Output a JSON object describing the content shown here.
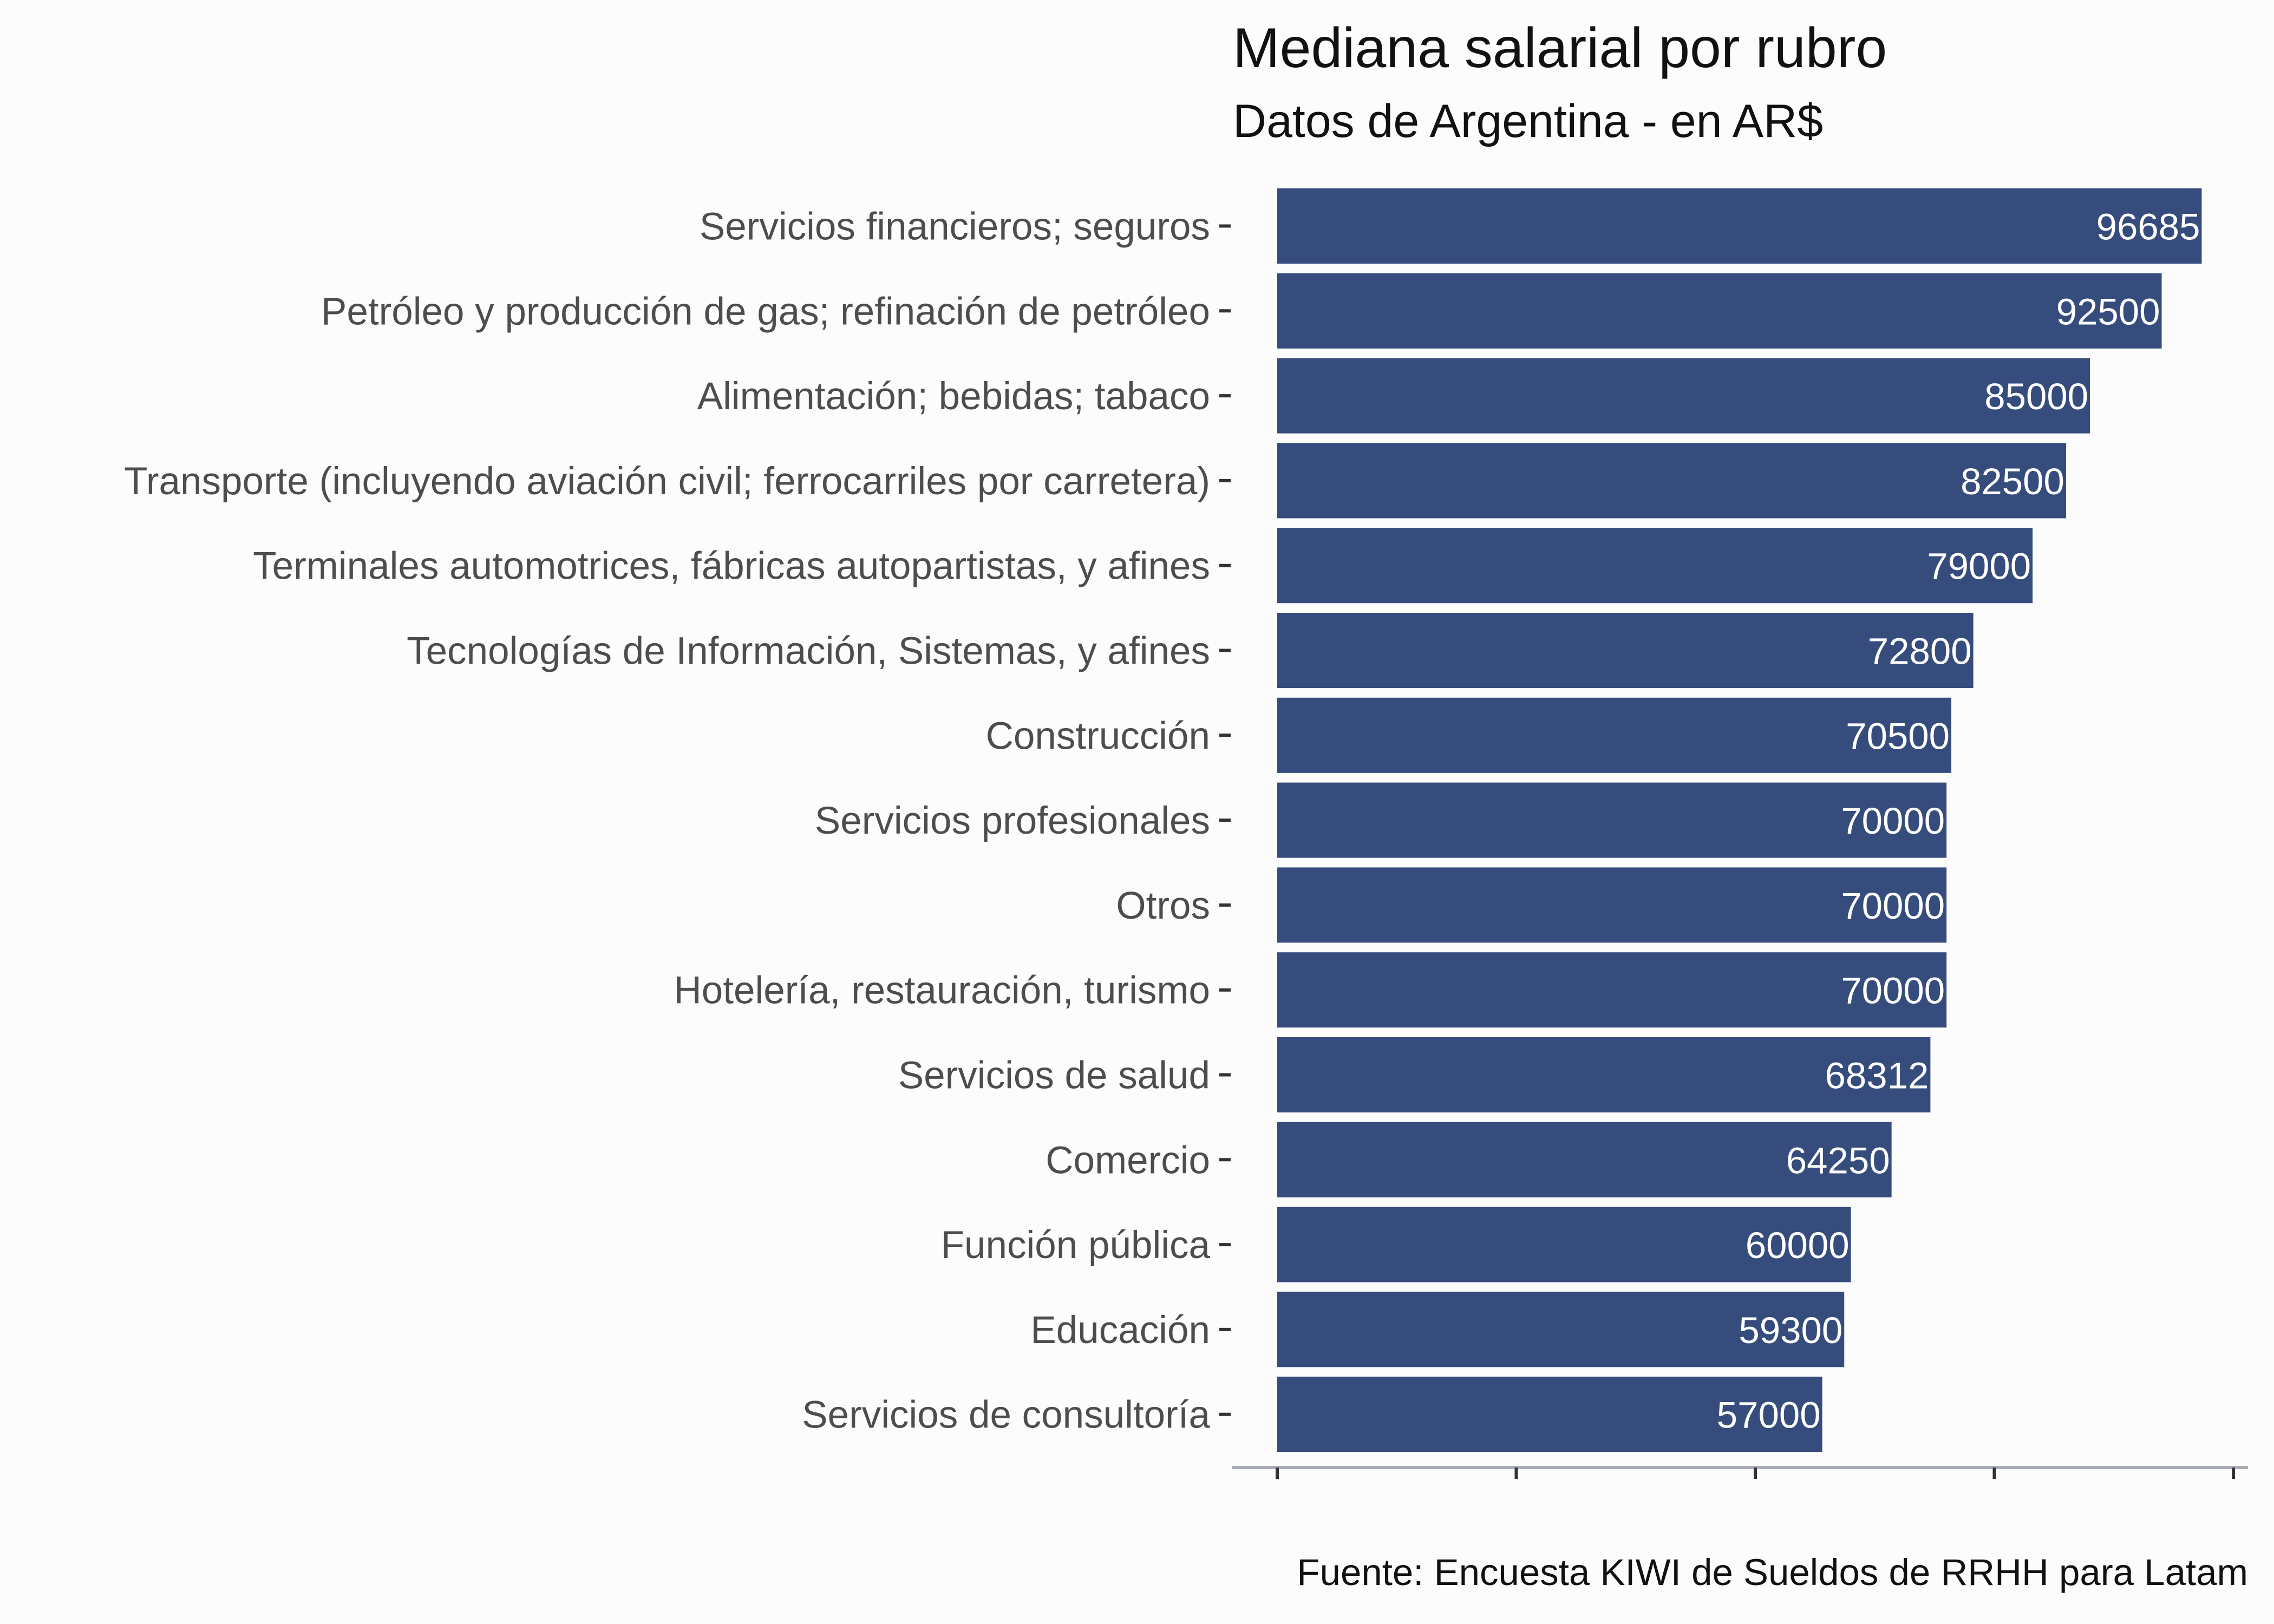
{
  "chart_data": {
    "type": "bar",
    "orientation": "horizontal",
    "title": "Mediana salarial por rubro",
    "subtitle": "Datos de Argentina - en AR$",
    "caption": "Fuente: Encuesta KIWI de Sueldos de RRHH para Latam",
    "xlim": [
      0,
      100000
    ],
    "x_ticks": [
      0,
      25000,
      50000,
      75000,
      100000
    ],
    "categories": [
      "Servicios financieros; seguros",
      "Petróleo y producción de gas; refinación de petróleo",
      "Alimentación; bebidas; tabaco",
      "Transporte (incluyendo aviación civil; ferrocarriles por carretera)",
      "Terminales automotrices, fábricas autopartistas, y afines",
      "Tecnologías de Información, Sistemas, y afines",
      "Construcción",
      "Servicios profesionales",
      "Otros",
      "Hotelería, restauración, turismo",
      "Servicios de salud",
      "Comercio",
      "Función pública",
      "Educación",
      "Servicios de consultoría"
    ],
    "values": [
      96685,
      92500,
      85000,
      82500,
      79000,
      72800,
      70500,
      70000,
      70000,
      70000,
      68312,
      64250,
      60000,
      59300,
      57000
    ],
    "bar_color": "#354c7c",
    "label_color": "#ffffff",
    "grid": false,
    "legend": "none"
  }
}
